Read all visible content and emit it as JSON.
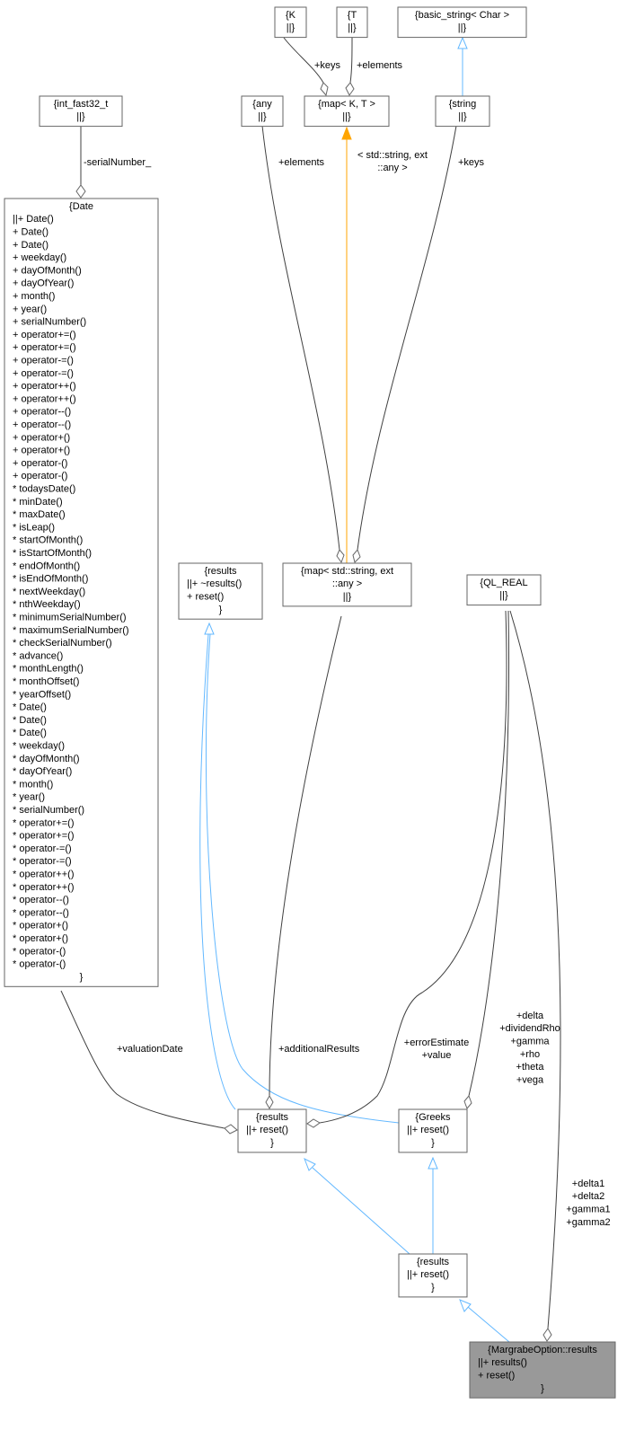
{
  "nodes": [
    {
      "lines": [
        "{int_fast32_t",
        "||}"
      ]
    },
    {
      "lines": [
        "{Date",
        "||+ Date()",
        "+ Date()",
        "+ Date()",
        "+ weekday()",
        "+ dayOfMonth()",
        "+ dayOfYear()",
        "+ month()",
        "+ year()",
        "+ serialNumber()",
        "+ operator+=()",
        "+ operator+=()",
        "+ operator-=()",
        "+ operator-=()",
        "+ operator++()",
        "+ operator++()",
        "+ operator--()",
        "+ operator--()",
        "+ operator+()",
        "+ operator+()",
        "+ operator-()",
        "+ operator-()",
        "* todaysDate()",
        "* minDate()",
        "* maxDate()",
        "* isLeap()",
        "* startOfMonth()",
        "* isStartOfMonth()",
        "* endOfMonth()",
        "* isEndOfMonth()",
        "* nextWeekday()",
        "* nthWeekday()",
        "* minimumSerialNumber()",
        "* maximumSerialNumber()",
        "* checkSerialNumber()",
        "* advance()",
        "* monthLength()",
        "* monthOffset()",
        "* yearOffset()",
        "* Date()",
        "* Date()",
        "* Date()",
        "* weekday()",
        "* dayOfMonth()",
        "* dayOfYear()",
        "* month()",
        "* year()",
        "* serialNumber()",
        "* operator+=()",
        "* operator+=()",
        "* operator-=()",
        "* operator-=()",
        "* operator++()",
        "* operator++()",
        "* operator--()",
        "* operator--()",
        "* operator+()",
        "* operator+()",
        "* operator-()",
        "* operator-()",
        "}"
      ]
    },
    {
      "lines": [
        "{K",
        "||}"
      ]
    },
    {
      "lines": [
        "{T",
        "||}"
      ]
    },
    {
      "lines": [
        "{basic_string< Char >",
        "||}"
      ]
    },
    {
      "lines": [
        "{any",
        "||}"
      ]
    },
    {
      "lines": [
        "{map< K, T >",
        "||}"
      ]
    },
    {
      "lines": [
        "{string",
        "||}"
      ]
    },
    {
      "lines": [
        "{results",
        "||+ ~results()",
        "+ reset()",
        "}"
      ]
    },
    {
      "lines": [
        "{map< std::string, ext",
        "::any >",
        "||}"
      ]
    },
    {
      "lines": [
        "{QL_REAL",
        "||}"
      ]
    },
    {
      "lines": [
        "{results",
        "||+ reset()",
        "}"
      ]
    },
    {
      "lines": [
        "{Greeks",
        "||+ reset()",
        "}"
      ]
    },
    {
      "lines": [
        "{results",
        "||+ reset()",
        "}"
      ]
    },
    {
      "lines": [
        "{MargrabeOption::results",
        "||+ results()",
        "+ reset()",
        "}"
      ]
    }
  ],
  "edge_labels": [
    [
      "-serialNumber_"
    ],
    [
      "+keys"
    ],
    [
      "+elements"
    ],
    [
      "+elements"
    ],
    [
      "< std::string, ext",
      "::any >"
    ],
    [
      "+keys"
    ],
    [
      "+valuationDate"
    ],
    [
      "+additionalResults"
    ],
    [
      "+errorEstimate",
      "+value"
    ],
    [
      "+delta",
      "+dividendRho",
      "+gamma",
      "+rho",
      "+theta",
      "+vega"
    ],
    [
      "+delta1",
      "+delta2",
      "+gamma1",
      "+gamma2"
    ]
  ]
}
